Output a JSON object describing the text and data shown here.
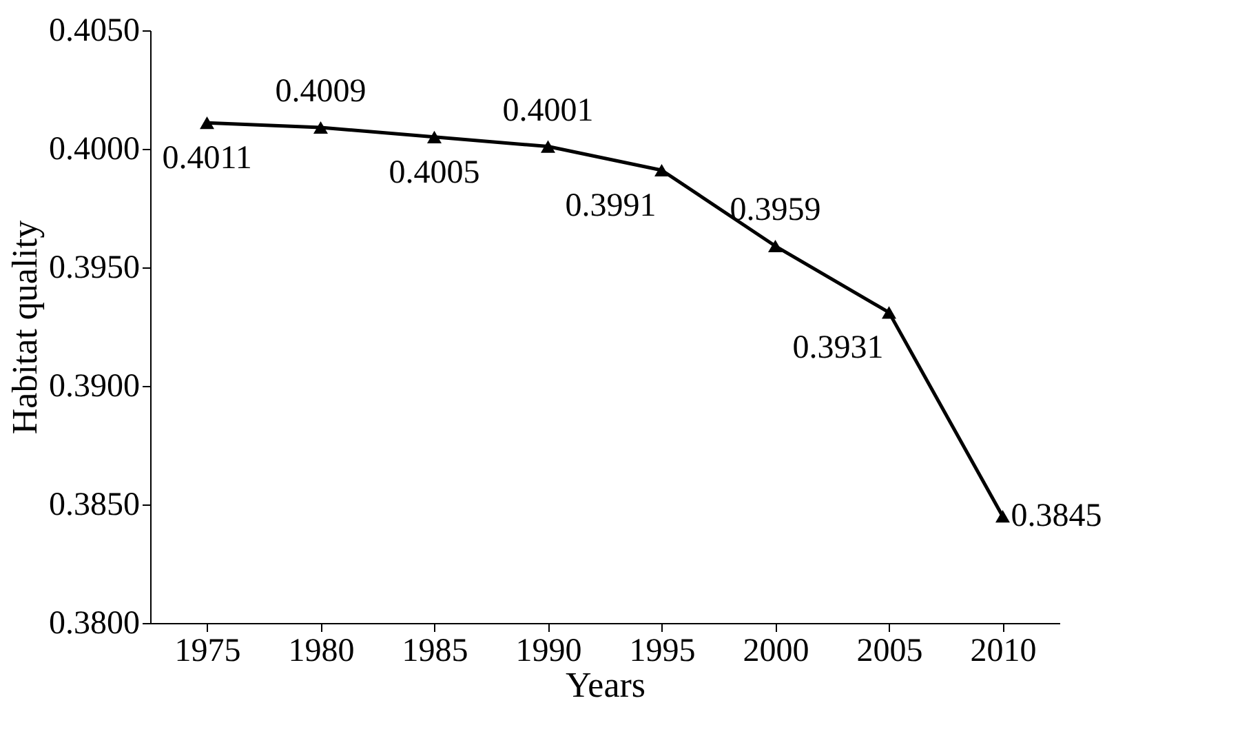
{
  "chart_data": {
    "type": "line",
    "xlabel": "Years",
    "ylabel": "Habitat quality",
    "categories": [
      "1975",
      "1980",
      "1985",
      "1990",
      "1995",
      "2000",
      "2005",
      "2010"
    ],
    "series": [
      {
        "color": "#000000",
        "values": [
          0.4011,
          0.4009,
          0.4005,
          0.4001,
          0.3991,
          0.3959,
          0.3931,
          0.3845
        ]
      }
    ],
    "ylim": [
      0.38,
      0.405
    ],
    "yticks": [
      {
        "value": 0.38,
        "label": "0.3800"
      },
      {
        "value": 0.385,
        "label": "0.3850"
      },
      {
        "value": 0.39,
        "label": "0.3900"
      },
      {
        "value": 0.395,
        "label": "0.3950"
      },
      {
        "value": 0.4,
        "label": "0.4000"
      },
      {
        "value": 0.405,
        "label": "0.4050"
      }
    ],
    "data_labels": true,
    "marker": "triangle",
    "line_style": "solid",
    "grid": false
  }
}
